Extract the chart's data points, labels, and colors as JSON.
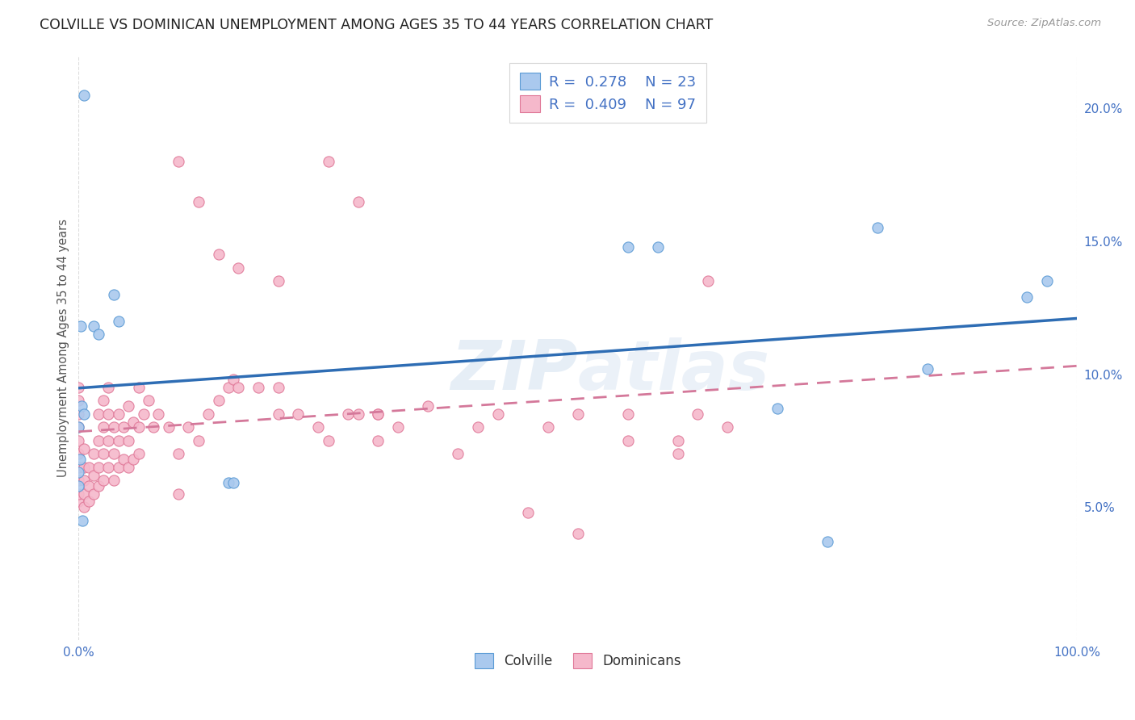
{
  "title": "COLVILLE VS DOMINICAN UNEMPLOYMENT AMONG AGES 35 TO 44 YEARS CORRELATION CHART",
  "source": "Source: ZipAtlas.com",
  "ylabel": "Unemployment Among Ages 35 to 44 years",
  "yticks": [
    "5.0%",
    "10.0%",
    "15.0%",
    "20.0%"
  ],
  "ytick_vals": [
    5.0,
    10.0,
    15.0,
    20.0
  ],
  "xmin": 0.0,
  "xmax": 100.0,
  "ymin": 0.0,
  "ymax": 22.0,
  "colville_color": "#aac9ee",
  "dominican_color": "#f5b8cb",
  "colville_edge_color": "#5b9bd5",
  "dominican_edge_color": "#e07898",
  "colville_line_color": "#2e6db4",
  "dominican_line_color": "#d4789a",
  "colville_R": 0.278,
  "colville_N": 23,
  "dominican_R": 0.409,
  "dominican_N": 97,
  "colville_x": [
    0.5,
    1.5,
    2.0,
    3.5,
    4.0,
    0.3,
    0.5,
    0.2,
    0.0,
    0.1,
    0.0,
    0.0,
    0.4,
    15.0,
    15.5,
    55.0,
    58.0,
    70.0,
    75.0,
    80.0,
    85.0,
    95.0,
    97.0
  ],
  "colville_y": [
    20.5,
    11.8,
    11.5,
    13.0,
    12.0,
    8.8,
    8.5,
    11.8,
    8.0,
    6.8,
    6.3,
    5.8,
    4.5,
    5.9,
    5.9,
    14.8,
    14.8,
    8.7,
    3.7,
    15.5,
    10.2,
    12.9,
    13.5
  ],
  "dominican_x": [
    0.0,
    0.0,
    0.0,
    0.0,
    0.0,
    0.0,
    0.0,
    0.0,
    0.0,
    0.0,
    0.5,
    0.5,
    0.5,
    0.5,
    0.5,
    1.0,
    1.0,
    1.0,
    1.5,
    1.5,
    1.5,
    2.0,
    2.0,
    2.0,
    2.0,
    2.5,
    2.5,
    2.5,
    2.5,
    3.0,
    3.0,
    3.0,
    3.0,
    3.5,
    3.5,
    3.5,
    4.0,
    4.0,
    4.0,
    4.5,
    4.5,
    5.0,
    5.0,
    5.0,
    5.5,
    5.5,
    6.0,
    6.0,
    6.0,
    6.5,
    7.0,
    7.5,
    8.0,
    9.0,
    10.0,
    10.0,
    11.0,
    12.0,
    13.0,
    14.0,
    15.0,
    15.5,
    16.0,
    18.0,
    20.0,
    20.0,
    22.0,
    24.0,
    25.0,
    27.0,
    28.0,
    30.0,
    30.0,
    32.0,
    35.0,
    38.0,
    40.0,
    42.0,
    45.0,
    47.0,
    50.0,
    50.0,
    55.0,
    55.0,
    60.0,
    60.0,
    62.0,
    63.0,
    65.0,
    10.0,
    12.0,
    14.0,
    16.0,
    20.0,
    25.0,
    28.0,
    30.0
  ],
  "dominican_y": [
    5.2,
    5.5,
    6.0,
    6.5,
    7.0,
    7.5,
    8.0,
    8.5,
    9.0,
    9.5,
    5.0,
    5.5,
    6.0,
    6.5,
    7.2,
    5.2,
    5.8,
    6.5,
    5.5,
    6.2,
    7.0,
    5.8,
    6.5,
    7.5,
    8.5,
    6.0,
    7.0,
    8.0,
    9.0,
    6.5,
    7.5,
    8.5,
    9.5,
    6.0,
    7.0,
    8.0,
    6.5,
    7.5,
    8.5,
    6.8,
    8.0,
    6.5,
    7.5,
    8.8,
    6.8,
    8.2,
    7.0,
    8.0,
    9.5,
    8.5,
    9.0,
    8.0,
    8.5,
    8.0,
    5.5,
    7.0,
    8.0,
    7.5,
    8.5,
    9.0,
    9.5,
    9.8,
    9.5,
    9.5,
    8.5,
    9.5,
    8.5,
    8.0,
    7.5,
    8.5,
    8.5,
    8.5,
    7.5,
    8.0,
    8.8,
    7.0,
    8.0,
    8.5,
    4.8,
    8.0,
    4.0,
    8.5,
    8.5,
    7.5,
    7.5,
    7.0,
    8.5,
    13.5,
    8.0,
    18.0,
    16.5,
    14.5,
    14.0,
    13.5,
    18.0,
    16.5,
    8.5
  ],
  "background_color": "#ffffff",
  "grid_color": "#dddddd",
  "title_fontsize": 12.5,
  "tick_color": "#4472c4",
  "tick_fontsize": 11,
  "label_color": "#555555"
}
